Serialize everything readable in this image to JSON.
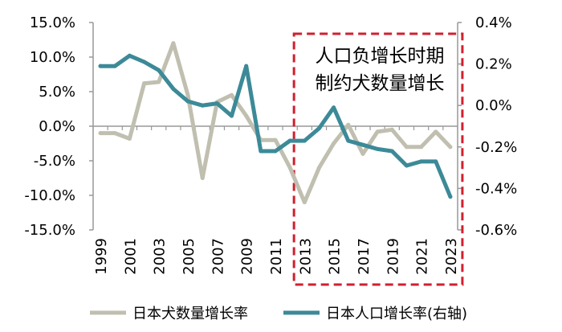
{
  "chart_data": {
    "type": "line",
    "x": [
      "1999",
      "2000",
      "2001",
      "2002",
      "2003",
      "2004",
      "2005",
      "2006",
      "2007",
      "2008",
      "2009",
      "2010",
      "2011",
      "2012",
      "2013",
      "2014",
      "2015",
      "2016",
      "2017",
      "2018",
      "2019",
      "2020",
      "2021",
      "2022",
      "2023"
    ],
    "x_tick_labels": [
      "1999",
      "2001",
      "2003",
      "2005",
      "2007",
      "2009",
      "2011",
      "2013",
      "2015",
      "2017",
      "2019",
      "2021",
      "2023"
    ],
    "series": [
      {
        "name": "日本犬数量增长率",
        "axis": "left",
        "color": "#c0bfb0",
        "unit": "%",
        "values": [
          -1.0,
          -1.0,
          -1.8,
          6.2,
          6.4,
          12.0,
          4.5,
          -7.5,
          3.5,
          4.5,
          1.5,
          -2.0,
          -2.0,
          -6.0,
          -11.0,
          -6.0,
          -2.5,
          0.2,
          -4.0,
          -0.8,
          -0.5,
          -3.0,
          -3.0,
          -0.8,
          -3.0
        ]
      },
      {
        "name": "日本人口增长率(右轴)",
        "axis": "right",
        "color": "#3c8a98",
        "unit": "%",
        "values": [
          0.19,
          0.19,
          0.24,
          0.21,
          0.17,
          0.08,
          0.02,
          0.0,
          0.01,
          -0.05,
          0.19,
          -0.22,
          -0.22,
          -0.17,
          -0.17,
          -0.11,
          -0.01,
          -0.17,
          -0.19,
          -0.21,
          -0.22,
          -0.29,
          -0.27,
          -0.27,
          -0.44
        ]
      }
    ],
    "y_left": {
      "min": -15,
      "max": 15,
      "ticks": [
        "15.0%",
        "10.0%",
        "5.0%",
        "0.0%",
        "-5.0%",
        "-10.0%",
        "-15.0%"
      ]
    },
    "y_right": {
      "min": -0.6,
      "max": 0.4,
      "ticks": [
        "0.4%",
        "0.2%",
        "0.0%",
        "-0.2%",
        "-0.4%",
        "-0.6%"
      ]
    },
    "annotation": {
      "line1": "人口负增长时期",
      "line2": "制约犬数量增长",
      "range": [
        "2012",
        "2023"
      ],
      "color": "#d02030"
    },
    "legend": [
      "日本犬数量增长率",
      "日本人口增长率(右轴)"
    ],
    "gridlines": false
  }
}
